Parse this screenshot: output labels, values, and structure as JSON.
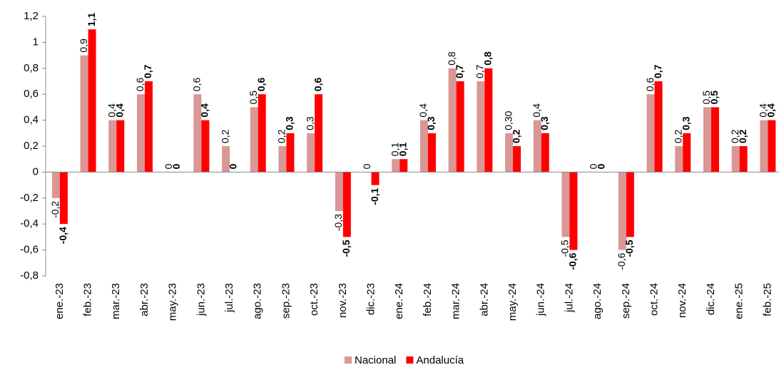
{
  "chart_data": {
    "type": "bar",
    "categories": [
      "ene.-23",
      "feb.-23",
      "mar.-23",
      "abr.-23",
      "may.-23",
      "jun.-23",
      "jul.-23",
      "ago.-23",
      "sep.-23",
      "oct.-23",
      "nov.-23",
      "dic.-23",
      "ene.-24",
      "feb.-24",
      "mar.-24",
      "abr.-24",
      "may.-24",
      "jun.-24",
      "jul.-24",
      "ago.-24",
      "sep.-24",
      "oct.-24",
      "nov.-24",
      "dic.-24",
      "ene.-25",
      "feb.-25"
    ],
    "series": [
      {
        "name": "Nacional",
        "color": "#d99795",
        "label_color": "#9a4a48",
        "values": [
          -0.2,
          0.9,
          0.4,
          0.6,
          0,
          0.6,
          0.2,
          0.5,
          0.2,
          0.3,
          -0.3,
          0,
          0.1,
          0.4,
          0.8,
          0.7,
          0.3,
          0.4,
          -0.5,
          0,
          -0.6,
          0.6,
          0.2,
          0.5,
          0.2,
          0.4
        ],
        "value_labels": [
          "-0,2",
          "0,9",
          "0,4",
          "0,6",
          "0",
          "0,6",
          "0,2",
          "0,5",
          "0,2",
          "0,3",
          "-0,3",
          "0",
          "0,1",
          "0,4",
          "0,8",
          "0,7",
          "0,30",
          "0,4",
          "-0,5",
          "0",
          "-0,6",
          "0,6",
          "0,2",
          "0,5",
          "0,2",
          "0,4"
        ]
      },
      {
        "name": "Andalucía",
        "color": "#ff0000",
        "label_color": "#ff0000",
        "values": [
          -0.4,
          1.1,
          0.4,
          0.7,
          0,
          0.4,
          0,
          0.6,
          0.3,
          0.6,
          -0.5,
          -0.1,
          0.1,
          0.3,
          0.7,
          0.8,
          0.2,
          0.3,
          -0.6,
          0,
          -0.5,
          0.7,
          0.3,
          0.5,
          0.2,
          0.4
        ],
        "value_labels": [
          "-0,4",
          "1,1",
          "0,4",
          "0,7",
          "0",
          "0,4",
          "0",
          "0,6",
          "0,3",
          "0,6",
          "-0,5",
          "-0,1",
          "0,1",
          "0,3",
          "0,7",
          "0,8",
          "0,2",
          "0,3",
          "-0,6",
          "0",
          "-0,5",
          "0,7",
          "0,3",
          "0,5",
          "0,2",
          "0,4"
        ]
      }
    ],
    "ylim": [
      -0.8,
      1.2
    ],
    "yticks": [
      {
        "value": -0.8,
        "label": "-0,8"
      },
      {
        "value": -0.6,
        "label": "-0,6"
      },
      {
        "value": -0.4,
        "label": "-0,4"
      },
      {
        "value": -0.2,
        "label": "-0,2"
      },
      0,
      {
        "value": 0.2,
        "label": "0,2"
      },
      {
        "value": 0.4,
        "label": "0,4"
      },
      {
        "value": 0.6,
        "label": "0,6"
      },
      {
        "value": 0.8,
        "label": "0,8"
      },
      1,
      {
        "value": 1.2,
        "label": "1,2"
      }
    ],
    "grid": false,
    "legend": "bottom"
  }
}
